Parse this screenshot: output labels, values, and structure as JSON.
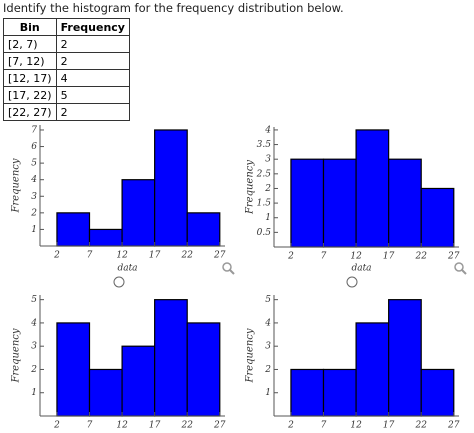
{
  "question": "Identify the histogram for the frequency distribution below.",
  "table": {
    "header": [
      "Bin",
      "Frequency"
    ],
    "rows": [
      [
        "[2, 7)",
        2
      ],
      [
        "[7, 12)",
        2
      ],
      [
        "[12, 17)",
        4
      ],
      [
        "[17, 22)",
        5
      ],
      [
        "[22, 27)",
        2
      ]
    ]
  },
  "chart_data": [
    {
      "type": "histogram",
      "bins": [
        2,
        7,
        12,
        17,
        22,
        27
      ],
      "values": [
        2,
        1,
        4,
        7,
        2
      ],
      "color": "#0000ff",
      "x_label": "data",
      "y_label": "Frequency",
      "xlim": [
        -0.6,
        27.8
      ],
      "ylim": [
        0,
        7.3
      ],
      "xticks": [
        2,
        7,
        12,
        17,
        22,
        27
      ],
      "yticks": [
        1,
        2,
        3,
        4,
        5,
        6,
        7
      ]
    },
    {
      "type": "histogram",
      "bins": [
        2,
        7,
        12,
        17,
        22,
        27
      ],
      "values": [
        3,
        3,
        4,
        3,
        2
      ],
      "color": "#0000ff",
      "x_label": "data",
      "y_label": "Frequency",
      "xlim": [
        -0.6,
        27.8
      ],
      "ylim": [
        0,
        4.1
      ],
      "xticks": [
        2,
        7,
        12,
        17,
        22,
        27
      ],
      "yticks": [
        0.5,
        1,
        1.5,
        2,
        2.5,
        3,
        3.5,
        4
      ]
    },
    {
      "type": "histogram",
      "bins": [
        2,
        7,
        12,
        17,
        22,
        27
      ],
      "values": [
        4,
        2,
        3,
        5,
        4
      ],
      "color": "#0000ff",
      "y_label": "Frequency",
      "xlim": [
        -0.6,
        27.8
      ],
      "ylim": [
        0,
        5.2
      ],
      "xticks": [
        2,
        7,
        12,
        17,
        22,
        27
      ],
      "yticks": [
        1,
        2,
        3,
        4,
        5
      ]
    },
    {
      "type": "histogram",
      "bins": [
        2,
        7,
        12,
        17,
        22,
        27
      ],
      "values": [
        2,
        2,
        4,
        5,
        2
      ],
      "color": "#0000ff",
      "y_label": "Frequency",
      "xlim": [
        -0.6,
        27.8
      ],
      "ylim": [
        0,
        5.2
      ],
      "xticks": [
        2,
        7,
        12,
        17,
        22,
        27
      ],
      "yticks": [
        1,
        2,
        3,
        4,
        5
      ]
    }
  ]
}
